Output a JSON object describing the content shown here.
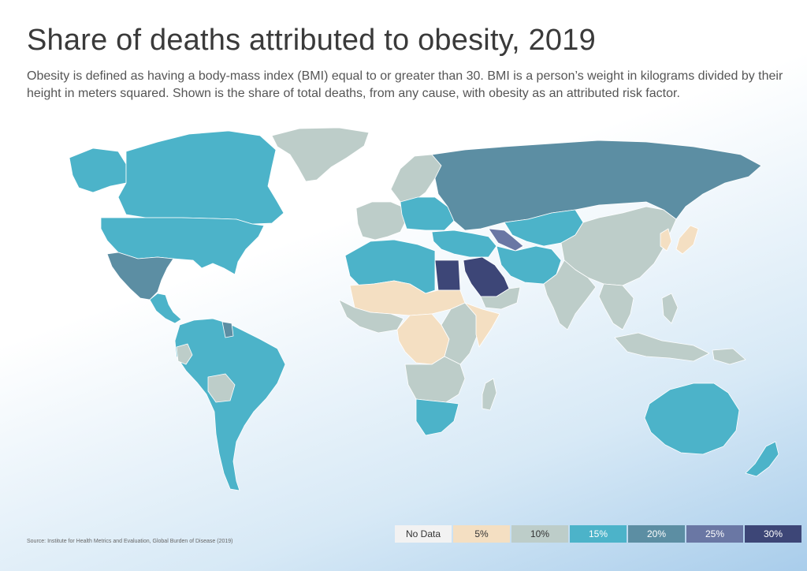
{
  "title": "Share of deaths attributed to obesity, 2019",
  "subtitle": "Obesity is defined as having a body-mass index (BMI) equal to or greater than 30. BMI is a person’s weight in kilograms divided by their height in meters squared. Shown is the share of total deaths, from any cause, with obesity as an attributed risk factor.",
  "source": "Source: Institute for Health Metrics and Evaluation, Global Burden of Disease (2019)",
  "legend": [
    {
      "label": "No Data",
      "color": "#f2f2f2",
      "text_color": "#333333"
    },
    {
      "label": "5%",
      "color": "#f4dfc2",
      "text_color": "#333333"
    },
    {
      "label": "10%",
      "color": "#bdcdc9",
      "text_color": "#333333"
    },
    {
      "label": "15%",
      "color": "#4cb3c9",
      "text_color": "#ffffff"
    },
    {
      "label": "20%",
      "color": "#5c8ea3",
      "text_color": "#ffffff"
    },
    {
      "label": "25%",
      "color": "#6a77a4",
      "text_color": "#ffffff"
    },
    {
      "label": "30%",
      "color": "#3d4677",
      "text_color": "#ffffff"
    }
  ],
  "regions": [
    {
      "name": "greenland",
      "bin": "10%"
    },
    {
      "name": "canada",
      "bin": "15%"
    },
    {
      "name": "united-states",
      "bin": "15%"
    },
    {
      "name": "alaska",
      "bin": "15%"
    },
    {
      "name": "mexico",
      "bin": "20%"
    },
    {
      "name": "central-america",
      "bin": "15%"
    },
    {
      "name": "south-america",
      "bin": "15%"
    },
    {
      "name": "bolivia",
      "bin": "10%"
    },
    {
      "name": "ecuador",
      "bin": "10%"
    },
    {
      "name": "guyana",
      "bin": "20%"
    },
    {
      "name": "europe",
      "bin": "10%"
    },
    {
      "name": "scandinavia",
      "bin": "10%"
    },
    {
      "name": "eastern-europe",
      "bin": "15%"
    },
    {
      "name": "russia",
      "bin": "20%"
    },
    {
      "name": "kazakhstan-central-asia",
      "bin": "15%"
    },
    {
      "name": "caucasus",
      "bin": "25%"
    },
    {
      "name": "turkey-middle-east",
      "bin": "15%"
    },
    {
      "name": "egypt",
      "bin": "30%"
    },
    {
      "name": "saudi-arabia",
      "bin": "30%"
    },
    {
      "name": "yemen",
      "bin": "10%"
    },
    {
      "name": "iran-afghanistan",
      "bin": "15%"
    },
    {
      "name": "north-africa",
      "bin": "15%"
    },
    {
      "name": "sahel",
      "bin": "5%"
    },
    {
      "name": "west-africa",
      "bin": "10%"
    },
    {
      "name": "central-africa",
      "bin": "5%"
    },
    {
      "name": "east-africa",
      "bin": "10%"
    },
    {
      "name": "horn-of-africa",
      "bin": "5%"
    },
    {
      "name": "southern-africa",
      "bin": "10%"
    },
    {
      "name": "south-africa",
      "bin": "15%"
    },
    {
      "name": "madagascar",
      "bin": "10%"
    },
    {
      "name": "china-mongolia",
      "bin": "10%"
    },
    {
      "name": "india",
      "bin": "10%"
    },
    {
      "name": "southeast-asia",
      "bin": "10%"
    },
    {
      "name": "indonesia",
      "bin": "10%"
    },
    {
      "name": "philippines",
      "bin": "10%"
    },
    {
      "name": "japan",
      "bin": "5%"
    },
    {
      "name": "korea",
      "bin": "5%"
    },
    {
      "name": "australia",
      "bin": "15%"
    },
    {
      "name": "new-zealand",
      "bin": "15%"
    },
    {
      "name": "papua-new-guinea",
      "bin": "10%"
    }
  ]
}
